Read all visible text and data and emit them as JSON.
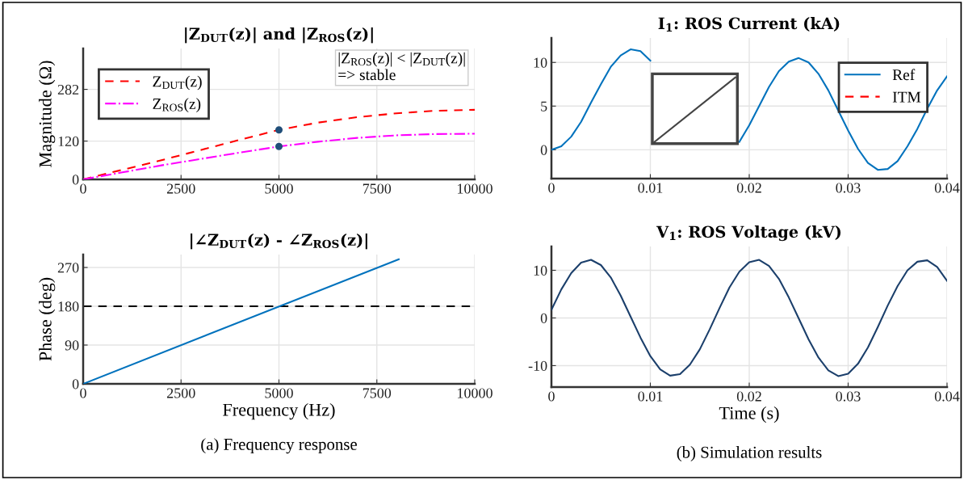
{
  "chart_data": [
    {
      "type": "line",
      "title": "|Z$_{DUT}$(z)| and |Z$_{ROS}$(z)|",
      "ylabel": "Magnitude (Ω)",
      "x": [
        0,
        1000,
        2000,
        3000,
        4000,
        5000,
        6000,
        7000,
        8000,
        9000,
        10000
      ],
      "xlim": [
        0,
        10000
      ],
      "xticks": [
        0,
        2500,
        5000,
        7500,
        10000
      ],
      "ylim": [
        0,
        410
      ],
      "yticks": [
        0,
        120,
        282
      ],
      "grid": true,
      "legend": "top left",
      "annotations": [
        "|Z$_{ROS}$(z)| < |Z$_{DUT}$(z)|\n=> stable"
      ],
      "series": [
        {
          "name": "Z$_{DUT}$(z)",
          "color": "#ff0000",
          "line_style": "dashed",
          "values": [
            0,
            30,
            60,
            92,
            124,
            155,
            178,
            195,
            207,
            215,
            218
          ]
        },
        {
          "name": "Z$_{ROS}$(z)",
          "color": "#ff00ff",
          "line_style": "dashdot",
          "values": [
            0,
            22,
            44,
            64,
            84,
            103,
            118,
            130,
            138,
            142,
            143
          ]
        },
        {
          "type": "scatter",
          "color": "#1f4e79",
          "marker": "circle",
          "x": [
            5000,
            5000
          ],
          "values": [
            155,
            103
          ]
        }
      ]
    },
    {
      "type": "line",
      "title": "|∠Z$_{DUT}$(z) - ∠Z$_{ROS}$(z)|",
      "xlabel": "Frequency (Hz)",
      "ylabel": "Phase (deg)",
      "xlim": [
        0,
        10000
      ],
      "xticks": [
        0,
        2500,
        5000,
        7500,
        10000
      ],
      "ylim": [
        0,
        300
      ],
      "yticks": [
        0,
        90,
        180,
        270
      ],
      "grid": true,
      "annotations": [
        "(a) Frequency response"
      ],
      "ref_lines": [
        {
          "axis": "y",
          "value": 180,
          "color": "#000000",
          "line_style": "dashed"
        }
      ],
      "series": [
        {
          "color": "#0072bd",
          "x": [
            0,
            8060
          ],
          "values": [
            0,
            289
          ]
        }
      ]
    },
    {
      "type": "line",
      "title": "I$_{1}$: ROS Current (kA)",
      "xlim": [
        0,
        0.04
      ],
      "xticks": [
        0,
        0.01,
        0.02,
        0.03,
        0.04
      ],
      "ylim": [
        -3.3,
        12.8
      ],
      "yticks": [
        0,
        5,
        10
      ],
      "grid": true,
      "legend": "top right",
      "x": [
        0,
        0.001,
        0.002,
        0.003,
        0.004,
        0.005,
        0.006,
        0.007,
        0.008,
        0.009,
        0.01,
        0.011,
        0.012,
        0.013,
        0.014,
        0.015,
        0.016,
        0.017,
        0.018,
        0.019,
        0.02,
        0.021,
        0.022,
        0.023,
        0.024,
        0.025,
        0.026,
        0.027,
        0.028,
        0.029,
        0.03,
        0.031,
        0.032,
        0.033,
        0.034,
        0.035,
        0.036,
        0.037,
        0.038,
        0.039,
        0.04
      ],
      "series": [
        {
          "name": "ITM",
          "color": "#ff0000",
          "line_style": "dashed",
          "values": [
            null,
            null,
            null,
            null,
            null,
            null,
            null,
            null,
            null,
            null,
            null,
            null,
            null,
            null,
            null,
            null,
            null,
            null,
            null,
            null,
            null,
            null,
            null,
            null,
            null,
            null,
            null,
            null,
            null,
            null,
            null,
            null,
            null,
            null,
            null,
            null,
            null,
            null,
            null,
            null,
            null
          ]
        },
        {
          "name": "Ref",
          "color": "#0072bd",
          "line_style": "solid",
          "values": [
            0.0,
            0.4,
            1.5,
            3.2,
            5.4,
            7.5,
            9.5,
            10.8,
            11.5,
            11.3,
            10.2,
            null,
            null,
            null,
            null,
            null,
            null,
            null,
            null,
            0.9,
            2.8,
            5.0,
            7.2,
            9.0,
            10.1,
            10.5,
            10.0,
            8.7,
            6.8,
            4.5,
            2.2,
            0.1,
            -1.5,
            -2.3,
            -2.2,
            -1.3,
            0.4,
            2.4,
            4.7,
            6.8,
            8.4
          ]
        }
      ]
    },
    {
      "type": "line",
      "title": "V$_{1}$: ROS Voltage (kV)",
      "xlabel": "Time (s)",
      "xlim": [
        0,
        0.04
      ],
      "xticks": [
        0,
        0.01,
        0.02,
        0.03,
        0.04
      ],
      "ylim": [
        -14.5,
        15
      ],
      "yticks": [
        {
          "value": -10,
          "label": "-10"
        },
        0,
        10
      ],
      "grid": true,
      "annotations": [
        "(b) Simulation results"
      ],
      "x": [
        0,
        0.001,
        0.002,
        0.003,
        0.004,
        0.005,
        0.006,
        0.007,
        0.008,
        0.009,
        0.01,
        0.011,
        0.012,
        0.013,
        0.014,
        0.015,
        0.016,
        0.017,
        0.018,
        0.019,
        0.02,
        0.021,
        0.022,
        0.023,
        0.024,
        0.025,
        0.026,
        0.027,
        0.028,
        0.029,
        0.03,
        0.031,
        0.032,
        0.033,
        0.034,
        0.035,
        0.036,
        0.037,
        0.038,
        0.039,
        0.04
      ],
      "series": [
        {
          "color": "#1b3f6b",
          "values": [
            1.7,
            6.0,
            9.4,
            11.6,
            12.2,
            11.1,
            8.5,
            4.7,
            0.3,
            -4.1,
            -8.0,
            -10.8,
            -12.1,
            -11.8,
            -9.8,
            -6.6,
            -2.4,
            2.1,
            6.4,
            9.7,
            11.7,
            12.2,
            10.9,
            8.2,
            4.3,
            -0.1,
            -4.5,
            -8.3,
            -11.0,
            -12.2,
            -11.7,
            -9.6,
            -6.2,
            -1.9,
            2.6,
            6.7,
            10.0,
            11.8,
            12.1,
            10.7,
            7.8
          ]
        }
      ]
    }
  ]
}
